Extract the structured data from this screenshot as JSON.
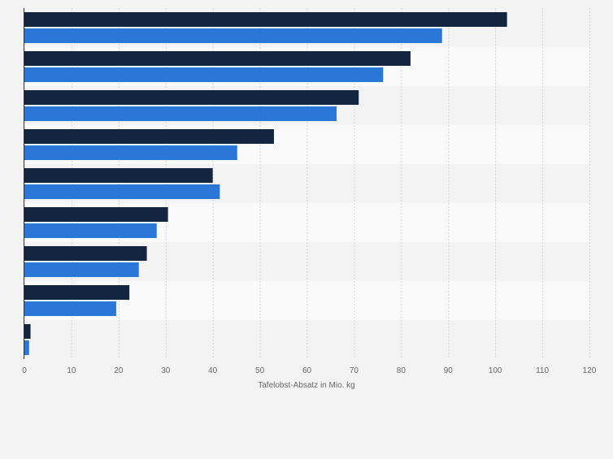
{
  "chart_data": {
    "type": "bar",
    "orientation": "horizontal",
    "categories": [
      "",
      "",
      "",
      "",
      "",
      "",
      "",
      "",
      ""
    ],
    "series": [
      {
        "color": "#13253f",
        "values": [
          102.5,
          82,
          71,
          53,
          40,
          30.5,
          26,
          22.3,
          1.3
        ]
      },
      {
        "color": "#2a77d8",
        "values": [
          88.7,
          76.2,
          66.3,
          45.2,
          41.5,
          28.1,
          24.3,
          19.5,
          1.0
        ]
      }
    ],
    "xlabel": "Tafelobst-Absatz in Mio. kg",
    "ylabel": "",
    "xlim": [
      0,
      120
    ],
    "xticks": [
      "0",
      "10",
      "20",
      "30",
      "40",
      "50",
      "60",
      "70",
      "80",
      "90",
      "100",
      "110",
      "120"
    ],
    "grid": true,
    "legend": "none"
  }
}
